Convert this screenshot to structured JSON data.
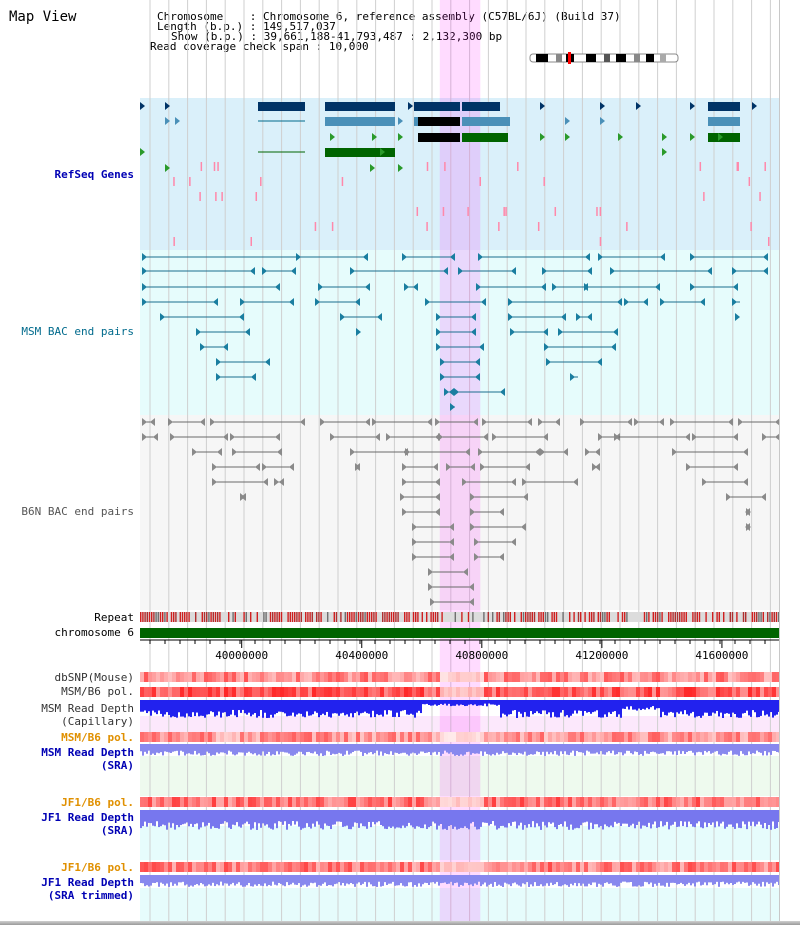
{
  "window": {
    "title": "Map View"
  },
  "info": {
    "chromosome": {
      "label": "Chromosome",
      "value": "Chromosome 6, reference assembly (C57BL/6J) (Build 37)"
    },
    "length": {
      "label": "Length (b.p.)",
      "value": "149,517,037"
    },
    "show": {
      "label": "Show (b.p.)",
      "value": "39,661,188-41,793,487 : 2,132,300 bp"
    },
    "coverage": {
      "label": "Read coverage check span",
      "value": "10,000"
    }
  },
  "view": {
    "start": 39661188,
    "end": 41793487,
    "highlight_start": 40660000,
    "highlight_end": 40795000
  },
  "axis": {
    "ticks": [
      {
        "pos": 40000000,
        "label": "40000000"
      },
      {
        "pos": 40400000,
        "label": "40400000"
      },
      {
        "pos": 40800000,
        "label": "40800000"
      },
      {
        "pos": 41200000,
        "label": "41200000"
      },
      {
        "pos": 41600000,
        "label": "41600000"
      }
    ]
  },
  "tracks": {
    "refseq": {
      "label": "RefSeq Genes",
      "color": "#0000b4"
    },
    "msm_bac": {
      "label": "MSM BAC end pairs",
      "color": "#006a8c"
    },
    "b6n_bac": {
      "label": "B6N BAC end pairs",
      "color": "#555555"
    },
    "repeat": {
      "label": "Repeat"
    },
    "chrom": {
      "label": "chromosome 6"
    },
    "dbsnp": {
      "label": "dbSNP(Mouse)"
    },
    "msm_pol": {
      "label": "MSM/B6 pol."
    },
    "msm_depth_cap": {
      "label1": "MSM Read Depth",
      "label2": "(Capillary)"
    },
    "msm_pol2": {
      "label": "MSM/B6 pol.",
      "color": "#e09000"
    },
    "msm_depth_sra": {
      "label1": "MSM Read Depth",
      "label2": "(SRA)",
      "color": "#0000b4"
    },
    "jf1_pol": {
      "label": "JF1/B6 pol.",
      "color": "#e09000"
    },
    "jf1_depth": {
      "label1": "JF1 Read Depth",
      "label2": "(SRA)",
      "color": "#0000b4"
    },
    "jf1_pol2": {
      "label": "JF1/B6 pol.",
      "color": "#e09000"
    },
    "jf1_depth_trim": {
      "label1": "JF1 Read Depth",
      "label2": "(SRA trimmed)",
      "color": "#0000b4"
    }
  }
}
